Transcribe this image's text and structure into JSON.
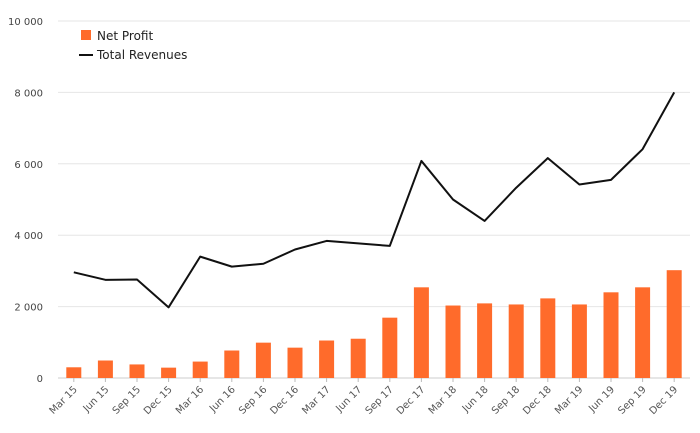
{
  "chart_data": {
    "type": "bar",
    "categories": [
      "Mar 15",
      "Jun 15",
      "Sep 15",
      "Dec 15",
      "Mar 16",
      "Jun 16",
      "Sep 16",
      "Dec 16",
      "Mar 17",
      "Jun 17",
      "Sep 17",
      "Dec 17",
      "Mar 18",
      "Jun 18",
      "Sep 18",
      "Dec 18",
      "Mar 19",
      "Jun 19",
      "Sep 19",
      "Dec 19"
    ],
    "series": [
      {
        "name": "Net Profit",
        "kind": "bar",
        "color": "#ff6b2b",
        "values": [
          300,
          490,
          380,
          290,
          460,
          770,
          990,
          850,
          1050,
          1100,
          1690,
          2540,
          2030,
          2090,
          2060,
          2230,
          2060,
          2400,
          2540,
          3020
        ]
      },
      {
        "name": "Total Revenues",
        "kind": "line",
        "color": "#111111",
        "values": [
          2960,
          2750,
          2760,
          1980,
          3400,
          3120,
          3200,
          3600,
          3840,
          3770,
          3700,
          6080,
          5000,
          4400,
          5330,
          6160,
          5420,
          5550,
          6410,
          8000
        ]
      }
    ],
    "yticks": [
      "0",
      "2 000",
      "4 000",
      "6 000",
      "8 000",
      "10 000"
    ],
    "ylim": [
      0,
      10000
    ],
    "grid": true,
    "legend_position": "top-left"
  }
}
